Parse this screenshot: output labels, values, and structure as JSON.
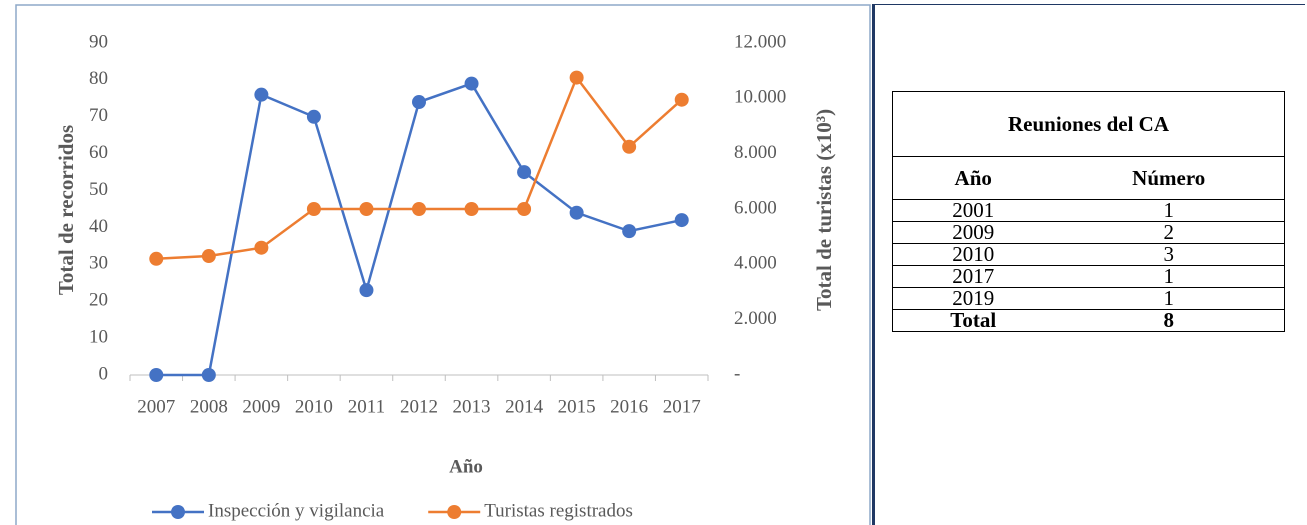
{
  "chart_data": {
    "type": "line",
    "categories": [
      "2007",
      "2008",
      "2009",
      "2010",
      "2011",
      "2012",
      "2013",
      "2014",
      "2015",
      "2016",
      "2017"
    ],
    "series": [
      {
        "name": "Inspección y vigilancia",
        "color": "#4472c4",
        "values": [
          0,
          0,
          76,
          70,
          23,
          74,
          79,
          55,
          44,
          39,
          42
        ]
      },
      {
        "name": "Turistas registrados",
        "color": "#ed7d31",
        "axis": "y2",
        "values": [
          4200,
          4300,
          4600,
          6000,
          6000,
          6000,
          6000,
          6000,
          10750,
          8250,
          9950
        ]
      }
    ],
    "xlabel": "Año",
    "ylabel": "Total de recorridos",
    "y2label": "Total de turistas (x10³)",
    "ylim": [
      0,
      90
    ],
    "yticks": [
      0,
      10,
      20,
      30,
      40,
      50,
      60,
      70,
      80,
      90
    ],
    "y2lim": [
      0,
      12000
    ],
    "y2ticks": [
      {
        "value": 0,
        "label": "-"
      },
      {
        "value": 2000,
        "label": "2.000"
      },
      {
        "value": 4000,
        "label": "4.000"
      },
      {
        "value": 6000,
        "label": "6.000"
      },
      {
        "value": 8000,
        "label": "8.000"
      },
      {
        "value": 10000,
        "label": "10.000"
      },
      {
        "value": 12000,
        "label": "12.000"
      }
    ],
    "grid": false,
    "legend": "bottom"
  },
  "table": {
    "title": "Reuniones del  CA",
    "columns": [
      "Año",
      "Número"
    ],
    "rows": [
      [
        2001,
        1
      ],
      [
        2009,
        2
      ],
      [
        2010,
        3
      ],
      [
        2017,
        1
      ],
      [
        2019,
        1
      ]
    ],
    "total": [
      "Total",
      8
    ]
  }
}
